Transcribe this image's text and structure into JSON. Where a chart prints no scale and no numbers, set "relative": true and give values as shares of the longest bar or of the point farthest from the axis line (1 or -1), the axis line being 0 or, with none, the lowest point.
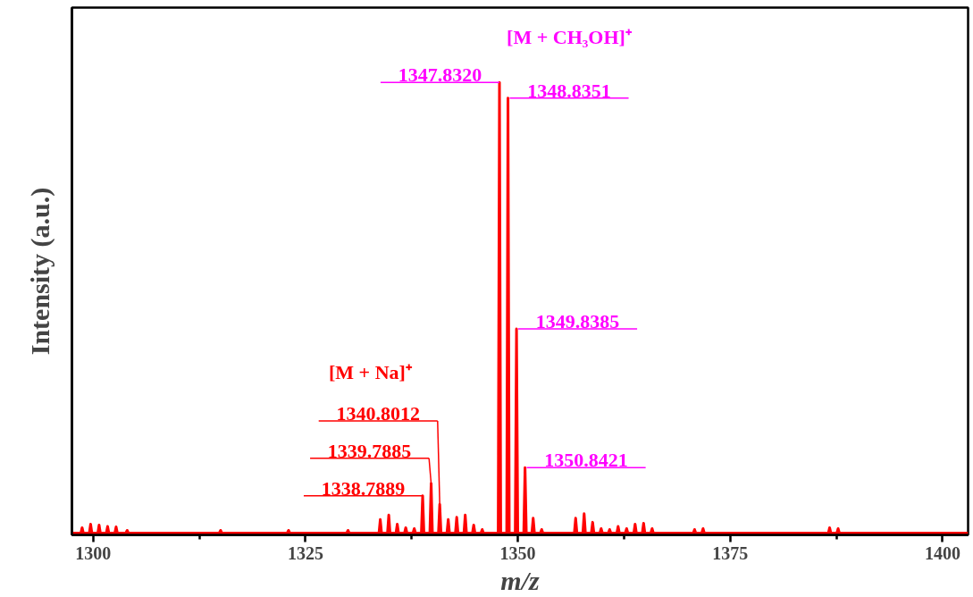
{
  "chart_data": {
    "type": "line",
    "relative": true,
    "xlabel": "m/z",
    "ylabel": "Intensity (a.u.)",
    "xlim": [
      1297.5,
      1403
    ],
    "xticks": [
      1300,
      {
        "value": 1312.5,
        "label": null
      },
      1325,
      {
        "value": 1337.5,
        "label": null
      },
      1350,
      {
        "value": 1362.5,
        "label": null
      },
      1375,
      {
        "value": 1387.5,
        "label": null
      },
      1400
    ],
    "tick_labels": "x",
    "grid": false,
    "marker": "none",
    "line_style": "solid",
    "series": [
      {
        "color": "#ff0000",
        "x": [
          1297.5,
          1298.55,
          1298.7,
          1298.85,
          1299.55,
          1299.7,
          1299.85,
          1300.55,
          1300.7,
          1300.85,
          1301.55,
          1301.7,
          1301.85,
          1302.55,
          1302.7,
          1302.85,
          1303.85,
          1304,
          1304.15,
          1314.85,
          1315,
          1315.15,
          1322.85,
          1323,
          1323.15,
          1329.85,
          1330,
          1330.15,
          1333.65,
          1333.8,
          1333.95,
          1334.65,
          1334.8,
          1334.95,
          1335.65,
          1335.8,
          1335.95,
          1336.65,
          1336.8,
          1336.95,
          1337.65,
          1337.8,
          1337.95,
          1338.6389,
          1338.7889,
          1338.9389,
          1339.6385,
          1339.7885,
          1339.9385,
          1340.6512,
          1340.8012,
          1340.9512,
          1341.65,
          1341.8,
          1341.95,
          1342.65,
          1342.8,
          1342.95,
          1343.65,
          1343.8,
          1343.95,
          1344.65,
          1344.8,
          1344.95,
          1345.65,
          1345.8,
          1345.95,
          1347.682,
          1347.832,
          1347.982,
          1348.6851,
          1348.8351,
          1348.9851,
          1349.6885,
          1349.8385,
          1349.9885,
          1350.6921,
          1350.8421,
          1350.9921,
          1351.65,
          1351.8,
          1351.95,
          1352.65,
          1352.8,
          1352.95,
          1356.65,
          1356.8,
          1356.95,
          1357.65,
          1357.8,
          1357.95,
          1358.65,
          1358.8,
          1358.95,
          1359.65,
          1359.8,
          1359.95,
          1360.65,
          1360.8,
          1360.95,
          1361.65,
          1361.8,
          1361.95,
          1362.65,
          1362.8,
          1362.95,
          1363.65,
          1363.8,
          1363.95,
          1364.65,
          1364.8,
          1364.95,
          1365.65,
          1365.8,
          1365.95,
          1370.65,
          1370.8,
          1370.95,
          1371.65,
          1371.8,
          1371.95,
          1386.55,
          1386.7,
          1386.85,
          1387.55,
          1387.7,
          1387.85,
          1403
        ],
        "values": [
          0,
          0,
          0.012,
          0,
          0,
          0.02,
          0,
          0,
          0.018,
          0,
          0,
          0.015,
          0,
          0,
          0.014,
          0,
          0,
          0.006,
          0,
          0,
          0.006,
          0,
          0,
          0.006,
          0,
          0,
          0.006,
          0,
          0,
          0.03,
          0,
          0,
          0.04,
          0,
          0,
          0.02,
          0,
          0,
          0.012,
          0,
          0,
          0.01,
          0,
          0,
          0.083,
          0,
          0,
          0.11,
          0,
          0,
          0.064,
          0,
          0,
          0.03,
          0,
          0,
          0.035,
          0,
          0,
          0.04,
          0,
          0,
          0.018,
          0,
          0,
          0.008,
          0,
          0,
          1.0,
          0,
          0,
          0.965,
          0,
          0,
          0.453,
          0,
          0,
          0.145,
          0,
          0,
          0.033,
          0,
          0,
          0.008,
          0,
          0,
          0.033,
          0,
          0,
          0.043,
          0,
          0,
          0.024,
          0,
          0,
          0.01,
          0,
          0,
          0.008,
          0,
          0,
          0.015,
          0,
          0,
          0.01,
          0,
          0,
          0.02,
          0,
          0,
          0.022,
          0,
          0,
          0.01,
          0,
          0,
          0.008,
          0,
          0,
          0.01,
          0,
          0,
          0.012,
          0,
          0,
          0.01,
          0,
          0
        ]
      }
    ],
    "annotations": [
      "[M + Na]⁺",
      {
        "text": "1338.7889",
        "x": 1338.7889,
        "y": 0.083
      },
      {
        "text": "1339.7885",
        "x": 1339.7885,
        "y": 0.11
      },
      {
        "text": "1340.8012",
        "x": 1340.8012,
        "y": 0.064
      },
      "[M + CH₃OH]⁺",
      {
        "text": "1347.8320",
        "x": 1347.832,
        "y": 1.0
      },
      {
        "text": "1348.8351",
        "x": 1348.8351,
        "y": 0.965
      },
      {
        "text": "1349.8385",
        "x": 1349.8385,
        "y": 0.453
      },
      {
        "text": "1350.8421",
        "x": 1350.8421,
        "y": 0.145
      }
    ]
  }
}
